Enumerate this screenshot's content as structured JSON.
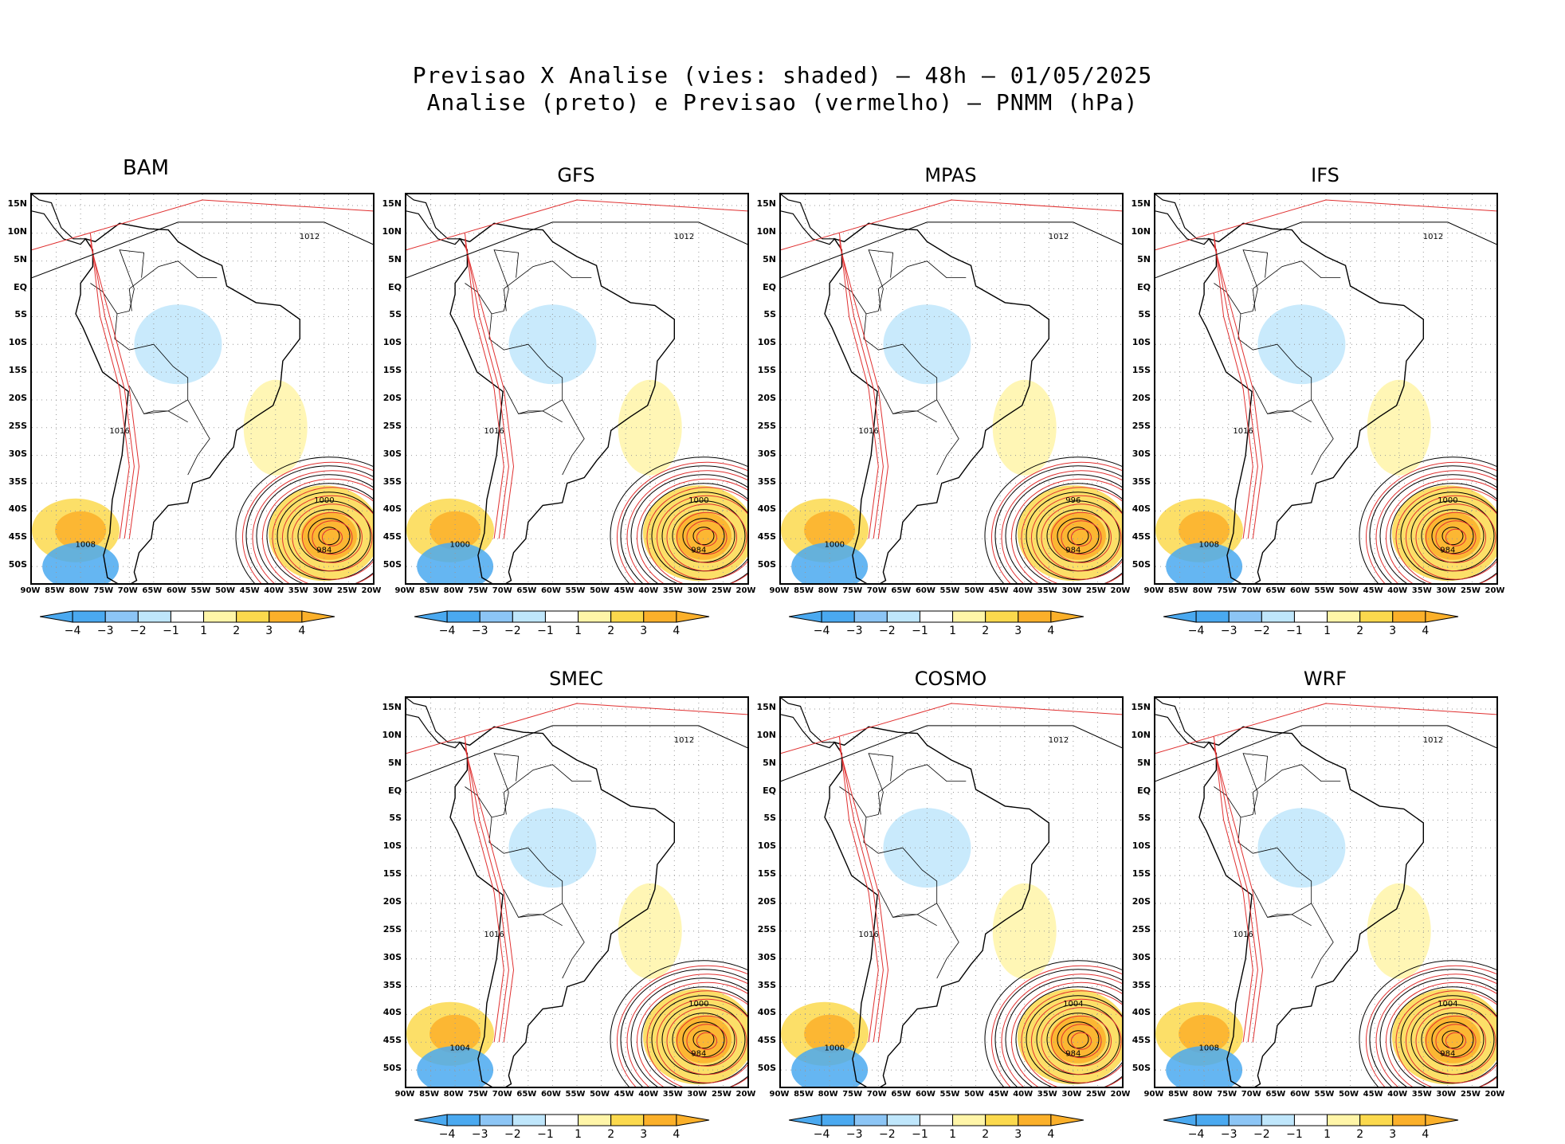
{
  "title": {
    "line1": "Previsao X Analise (vies: shaded) — 48h — 01/05/2025",
    "line2": "Analise (preto) e Previsao (vermelho) — PNMM (hPa)"
  },
  "axes": {
    "y_labels": [
      "15N",
      "10N",
      "5N",
      "EQ",
      "5S",
      "10S",
      "15S",
      "20S",
      "25S",
      "30S",
      "35S",
      "40S",
      "45S",
      "50S"
    ],
    "x_labels": [
      "90W",
      "85W",
      "80W",
      "75W",
      "70W",
      "65W",
      "60W",
      "55W",
      "50W",
      "45W",
      "40W",
      "35W",
      "30W",
      "25W",
      "20W"
    ]
  },
  "colorbar": {
    "labels": [
      "−4",
      "−3",
      "−2",
      "−1",
      "1",
      "2",
      "3",
      "4"
    ],
    "colors": [
      "#4aa9f0",
      "#8cc5f5",
      "#bfe6fb",
      "#ffffff",
      "#fff5a8",
      "#fbd94d",
      "#fbb02a"
    ]
  },
  "colors": {
    "analysis": "#000000",
    "forecast": "#e03030"
  },
  "panels": [
    {
      "name": "BAM",
      "labels": {
        "c1": "984",
        "c2": "1000",
        "c3": "1016",
        "c4": "1012",
        "c5": "1008"
      }
    },
    {
      "name": "GFS",
      "labels": {
        "c1": "984",
        "c2": "1000",
        "c3": "1016",
        "c4": "1012",
        "c5": "1000"
      }
    },
    {
      "name": "MPAS",
      "labels": {
        "c1": "984",
        "c2": "996",
        "c3": "1016",
        "c4": "1012",
        "c5": "1000"
      }
    },
    {
      "name": "IFS",
      "labels": {
        "c1": "984",
        "c2": "1000",
        "c3": "1016",
        "c4": "1012",
        "c5": "1008"
      }
    },
    {
      "name": "SMEC",
      "labels": {
        "c1": "984",
        "c2": "1000",
        "c3": "1016",
        "c4": "1012",
        "c5": "1004"
      }
    },
    {
      "name": "COSMO",
      "labels": {
        "c1": "984",
        "c2": "1004",
        "c3": "1016",
        "c4": "1012",
        "c5": "1000"
      }
    },
    {
      "name": "WRF",
      "labels": {
        "c1": "984",
        "c2": "1004",
        "c3": "1016",
        "c4": "1012",
        "c5": "1008"
      }
    }
  ]
}
